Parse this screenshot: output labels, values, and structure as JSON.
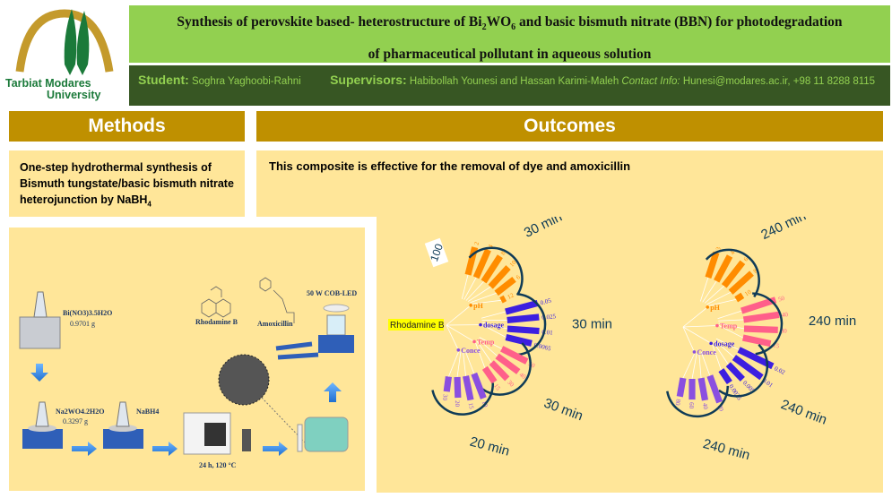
{
  "logo": {
    "text_line1": "Tarbiat Modares",
    "text_line2": "University"
  },
  "title": {
    "part1": "Synthesis of perovskite based- heterostructure of Bi",
    "sub1": "2",
    "part2": "WO",
    "sub2": "6",
    "part3": " and basic bismuth nitrate (BBN) for photodegradation",
    "line2": "of pharmaceutical pollutant in aqueous solution"
  },
  "info": {
    "student_label": "Student:",
    "student": "Soghra Yaghoobi-Rahni",
    "supervisors_label": "Supervisors:",
    "supervisors": "Habibollah Younesi and Hassan Karimi-Maleh",
    "contact_label": "Contact Info:",
    "contact": "Hunesi@modares.ac.ir, +98 11 8288 8115"
  },
  "methods": {
    "header": "Methods",
    "text": "One-step hydrothermal synthesis of Bismuth tungstate/basic bismuth nitrate heterojunction by NaBH",
    "text_sub": "4"
  },
  "outcomes": {
    "header": "Outcomes",
    "text": "This composite is effective for the removal of dye and amoxicillin"
  },
  "scheme": {
    "reagent1": "Bi(NO3)3.5H2O",
    "mass1": "0.9701 g",
    "reagent2": "Na2WO4.2H2O",
    "mass2": "0.3297 g",
    "reagent3": "NaBH4",
    "oven": "24 h, 120 °C",
    "dye": "Rhodamine B",
    "drug": "Amoxicillin",
    "lamp": "50 W COB-LED"
  },
  "colors": {
    "ph": "#ff8c00",
    "dosage": "#3c1fe0",
    "temp": "#ff5f8a",
    "conc": "#8a4fe0",
    "arc": "#0f3b57",
    "header": "#bf9000",
    "panel": "#ffe699"
  },
  "chart_data": [
    {
      "type": "radial-bar",
      "label": "Rhodamine B",
      "scale_label": "100",
      "groups": [
        {
          "name": "pH",
          "key": "ph",
          "categories": [
            "2",
            "4",
            "8",
            "10",
            "6",
            "12"
          ],
          "values": [
            75,
            80,
            80,
            70,
            60,
            12
          ],
          "time": "30 min"
        },
        {
          "name": "dosage",
          "key": "dosage",
          "categories": [
            "0.05",
            "0.025",
            "0.01",
            "0.0065"
          ],
          "values": [
            88,
            85,
            85,
            70
          ],
          "time": "30 min"
        },
        {
          "name": "Temp",
          "key": "temp",
          "categories": [
            "50",
            "40",
            "30",
            "15"
          ],
          "values": [
            75,
            70,
            60,
            45
          ],
          "time": "30 min"
        },
        {
          "name": "Conce",
          "key": "conc",
          "categories": [
            "10",
            "15",
            "20",
            "30"
          ],
          "values": [
            70,
            65,
            55,
            40
          ],
          "time": "20 min"
        }
      ]
    },
    {
      "type": "radial-bar",
      "groups": [
        {
          "name": "pH",
          "key": "ph",
          "categories": [
            "3",
            "4",
            "6",
            "8",
            "10"
          ],
          "values": [
            70,
            75,
            80,
            75,
            20
          ],
          "time": "240 min"
        },
        {
          "name": "Temp",
          "key": "temp",
          "categories": [
            "50",
            "40",
            "30",
            "15"
          ],
          "values": [
            95,
            95,
            90,
            75
          ],
          "time": "240 min"
        },
        {
          "name": "dosage",
          "key": "dosage",
          "categories": [
            "0.02",
            "0.01",
            "0.005",
            "0.0025"
          ],
          "values": [
            100,
            90,
            55,
            40
          ],
          "time": "240 min"
        },
        {
          "name": "Conce",
          "key": "conc",
          "categories": [
            "20",
            "40",
            "60",
            "80"
          ],
          "values": [
            75,
            60,
            55,
            50
          ],
          "time": "240 min"
        }
      ]
    }
  ]
}
